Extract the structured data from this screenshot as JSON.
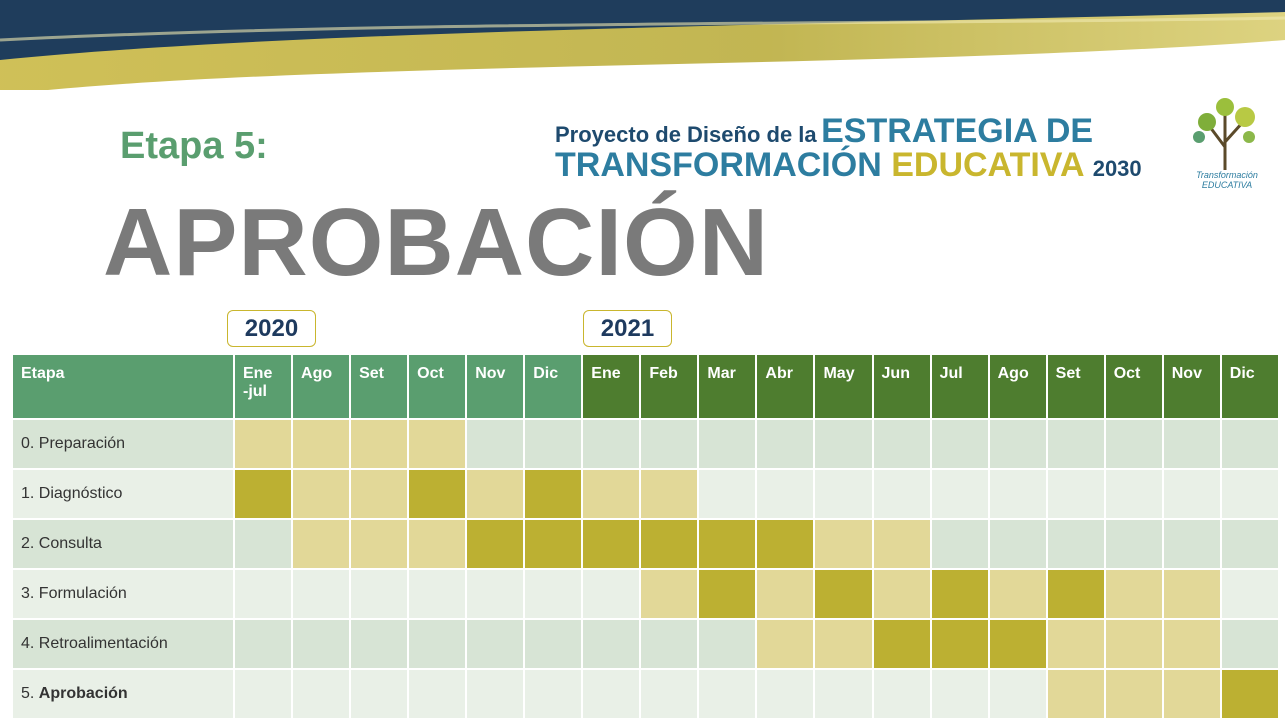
{
  "header": {
    "stage_label": "Etapa 5:",
    "stage_title": "APROBACIÓN",
    "project_line1_a": "Proyecto de Diseño de la",
    "project_line1_b": "ESTRATEGIA DE",
    "project_line2_a": "TRANSFORMACIÓN",
    "project_line2_b": "EDUCATIVA",
    "project_line2_c": "2030",
    "logo_text": "Transformación\nEDUCATIVA"
  },
  "years": [
    "2020",
    "2021"
  ],
  "table": {
    "header_first": "Etapa",
    "columns": [
      "Ene\n-jul",
      "Ago",
      "Set",
      "Oct",
      "Nov",
      "Dic",
      "Ene",
      "Feb",
      "Mar",
      "Abr",
      "May",
      "Jun",
      "Jul",
      "Ago",
      "Set",
      "Oct",
      "Nov",
      "Dic"
    ],
    "column_colors": [
      "#5a9e6f",
      "#5a9e6f",
      "#5a9e6f",
      "#5a9e6f",
      "#5a9e6f",
      "#5a9e6f",
      "#4e7d2f",
      "#4e7d2f",
      "#4e7d2f",
      "#4e7d2f",
      "#4e7d2f",
      "#4e7d2f",
      "#4e7d2f",
      "#4e7d2f",
      "#4e7d2f",
      "#4e7d2f",
      "#4e7d2f",
      "#4e7d2f"
    ],
    "rows": [
      {
        "number": "0.",
        "name": "Preparación",
        "cells": [
          "#e2d898",
          "#e2d898",
          "#e2d898",
          "#e2d898",
          null,
          null,
          null,
          null,
          null,
          null,
          null,
          null,
          null,
          null,
          null,
          null,
          null,
          null
        ]
      },
      {
        "number": "1.",
        "name": "Diagnóstico",
        "cells": [
          "#bcb032",
          "#e2d898",
          "#e2d898",
          "#bcb032",
          "#e2d898",
          "#bcb032",
          "#e2d898",
          "#e2d898",
          null,
          null,
          null,
          null,
          null,
          null,
          null,
          null,
          null,
          null
        ]
      },
      {
        "number": "2.",
        "name": "Consulta",
        "cells": [
          null,
          "#e2d898",
          "#e2d898",
          "#e2d898",
          "#bcb032",
          "#bcb032",
          "#bcb032",
          "#bcb032",
          "#bcb032",
          "#bcb032",
          "#e2d898",
          "#e2d898",
          null,
          null,
          null,
          null,
          null,
          null
        ]
      },
      {
        "number": "3.",
        "name": "Formulación",
        "cells": [
          null,
          null,
          null,
          null,
          null,
          null,
          null,
          "#e2d898",
          "#bcb032",
          "#e2d898",
          "#bcb032",
          "#e2d898",
          "#bcb032",
          "#e2d898",
          "#bcb032",
          "#e2d898",
          "#e2d898",
          null
        ]
      },
      {
        "number": "4.",
        "name": "Retroalimentación",
        "cells": [
          null,
          null,
          null,
          null,
          null,
          null,
          null,
          null,
          null,
          "#e2d898",
          "#e2d898",
          "#bcb032",
          "#bcb032",
          "#bcb032",
          "#e2d898",
          "#e2d898",
          "#e2d898",
          null
        ]
      },
      {
        "number": "5.",
        "name": "Aprobación",
        "bold": true,
        "cells": [
          null,
          null,
          null,
          null,
          null,
          null,
          null,
          null,
          null,
          null,
          null,
          null,
          null,
          null,
          "#e2d898",
          "#e2d898",
          "#e2d898",
          "#bcb032"
        ]
      }
    ]
  }
}
